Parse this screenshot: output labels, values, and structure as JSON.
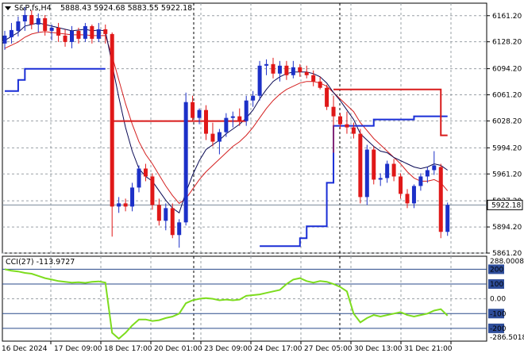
{
  "header": {
    "arrow_icon": "triangle-down-icon",
    "symbol": "S&P,fs,H4",
    "ohlc": "5888.43 5924.68 5883.55 5922.18"
  },
  "price_axis": {
    "ticks": [
      "6161.20",
      "6128.20",
      "6094.20",
      "6061.20",
      "6028.20",
      "5994.20",
      "5961.20",
      "5927.20",
      "5894.20",
      "5861.20"
    ],
    "current_price_label": "5922.18"
  },
  "indicator": {
    "title": "CCI(27) -113.9727",
    "ticks": [
      "288.0008",
      "0.00",
      "-286.5018"
    ],
    "level_labels": [
      "200",
      "100",
      "-100",
      "-200"
    ]
  },
  "time_axis": {
    "labels": [
      "16 Dec 2024",
      "17 Dec 09:00",
      "18 Dec 17:00",
      "20 Dec 01:00",
      "23 Dec 09:00",
      "24 Dec 17:00",
      "27 Dec 05:00",
      "30 Dec 13:00",
      "31 Dec 21:00"
    ]
  },
  "colors": {
    "bull": "#1c30c8",
    "bear": "#e01818",
    "fast_ma": "#0a0a55",
    "slow_ma": "#d42020",
    "stop_bull": "#1a2ed6",
    "stop_bear": "#d81a1a",
    "cci": "#7ddc1e",
    "grid": "#9aa0a6",
    "level_line": "#2a4a8a"
  },
  "chart_data": {
    "type": "candlestick",
    "y_range": [
      5861.2,
      6177
    ],
    "series": [
      {
        "name": "price",
        "ohlc": [
          [
            6126,
            6142,
            6118,
            6136
          ],
          [
            6134,
            6152,
            6126,
            6143
          ],
          [
            6142,
            6160,
            6135,
            6154
          ],
          [
            6154,
            6172,
            6142,
            6162
          ],
          [
            6162,
            6168,
            6144,
            6150
          ],
          [
            6150,
            6164,
            6140,
            6158
          ],
          [
            6158,
            6162,
            6136,
            6142
          ],
          [
            6142,
            6150,
            6130,
            6146
          ],
          [
            6146,
            6152,
            6128,
            6136
          ],
          [
            6136,
            6144,
            6122,
            6128
          ],
          [
            6128,
            6148,
            6120,
            6142
          ],
          [
            6142,
            6146,
            6126,
            6132
          ],
          [
            6132,
            6152,
            6128,
            6148
          ],
          [
            6148,
            6150,
            6126,
            6132
          ],
          [
            6132,
            6152,
            6128,
            6144
          ],
          [
            6144,
            6150,
            6126,
            6138
          ],
          [
            6138,
            6140,
            5882,
            5920
          ],
          [
            5920,
            5932,
            5912,
            5924
          ],
          [
            5924,
            5930,
            5914,
            5920
          ],
          [
            5920,
            5950,
            5914,
            5944
          ],
          [
            5944,
            5972,
            5938,
            5968
          ],
          [
            5968,
            5974,
            5952,
            5958
          ],
          [
            5958,
            5962,
            5916,
            5922
          ],
          [
            5922,
            5930,
            5896,
            5902
          ],
          [
            5902,
            5924,
            5890,
            5918
          ],
          [
            5918,
            5924,
            5880,
            5884
          ],
          [
            5884,
            5904,
            5868,
            5900
          ],
          [
            5900,
            6064,
            5896,
            6052
          ],
          [
            6052,
            6060,
            6028,
            6032
          ],
          [
            6032,
            6044,
            6024,
            6042
          ],
          [
            6042,
            6048,
            6004,
            6012
          ],
          [
            6012,
            6026,
            5996,
            6002
          ],
          [
            6002,
            6018,
            5986,
            6014
          ],
          [
            6014,
            6038,
            6008,
            6032
          ],
          [
            6032,
            6040,
            6020,
            6034
          ],
          [
            6034,
            6044,
            6022,
            6028
          ],
          [
            6028,
            6060,
            6022,
            6054
          ],
          [
            6054,
            6066,
            6046,
            6060
          ],
          [
            6060,
            6104,
            6054,
            6098
          ],
          [
            6098,
            6106,
            6086,
            6100
          ],
          [
            6100,
            6108,
            6082,
            6088
          ],
          [
            6088,
            6104,
            6078,
            6098
          ],
          [
            6098,
            6104,
            6080,
            6086
          ],
          [
            6086,
            6104,
            6082,
            6096
          ],
          [
            6096,
            6100,
            6084,
            6090
          ],
          [
            6090,
            6098,
            6082,
            6086
          ],
          [
            6086,
            6092,
            6072,
            6078
          ],
          [
            6078,
            6084,
            6068,
            6070
          ],
          [
            6070,
            6074,
            6042,
            6046
          ],
          [
            6046,
            6060,
            5988,
            6034
          ],
          [
            6034,
            6038,
            6018,
            6024
          ],
          [
            6024,
            6040,
            6012,
            6020
          ],
          [
            6020,
            6026,
            6006,
            6012
          ],
          [
            6012,
            6018,
            5924,
            5932
          ],
          [
            5932,
            5998,
            5922,
            5992
          ],
          [
            5992,
            5996,
            5948,
            5954
          ],
          [
            5954,
            5962,
            5946,
            5956
          ],
          [
            5956,
            5978,
            5950,
            5974
          ],
          [
            5974,
            5980,
            5952,
            5958
          ],
          [
            5958,
            5962,
            5930,
            5936
          ],
          [
            5936,
            5942,
            5918,
            5924
          ],
          [
            5924,
            5948,
            5918,
            5946
          ],
          [
            5946,
            5962,
            5940,
            5958
          ],
          [
            5958,
            5970,
            5950,
            5966
          ],
          [
            5966,
            5990,
            5960,
            5972
          ],
          [
            5970,
            5974,
            5880,
            5888
          ],
          [
            5888,
            5925,
            5883,
            5922
          ]
        ]
      },
      {
        "name": "fast_ma",
        "values": [
          6130,
          6135,
          6140,
          6148,
          6150,
          6152,
          6150,
          6148,
          6146,
          6144,
          6142,
          6143,
          6144,
          6142,
          6143,
          6142,
          6100,
          6058,
          6020,
          5990,
          5968,
          5958,
          5952,
          5940,
          5928,
          5918,
          5912,
          5938,
          5960,
          5978,
          5992,
          5998,
          6004,
          6012,
          6018,
          6024,
          6032,
          6042,
          6056,
          6068,
          6078,
          6084,
          6088,
          6090,
          6090,
          6090,
          6088,
          6084,
          6076,
          6064,
          6054,
          6042,
          6030,
          6012,
          6004,
          5996,
          5990,
          5988,
          5982,
          5978,
          5974,
          5970,
          5968,
          5970,
          5974,
          5972,
          5966
        ]
      },
      {
        "name": "slow_ma",
        "values": [
          6120,
          6124,
          6128,
          6134,
          6138,
          6140,
          6141,
          6140,
          6139,
          6138,
          6137,
          6137,
          6137,
          6136,
          6136,
          6136,
          6110,
          6080,
          6050,
          6024,
          6002,
          5986,
          5974,
          5960,
          5946,
          5934,
          5924,
          5930,
          5942,
          5954,
          5964,
          5972,
          5980,
          5988,
          5996,
          6002,
          6010,
          6020,
          6032,
          6044,
          6054,
          6062,
          6068,
          6072,
          6076,
          6078,
          6078,
          6076,
          6072,
          6064,
          6056,
          6048,
          6040,
          6026,
          6016,
          6006,
          5998,
          5990,
          5982,
          5974,
          5964,
          5956,
          5952,
          5952,
          5954,
          5950,
          5940
        ]
      },
      {
        "name": "stop_bull",
        "values": [
          6066,
          6066,
          6080,
          6094,
          6094,
          6094,
          6094,
          6094,
          6094,
          6094,
          6094,
          6094,
          6094,
          6094,
          6094,
          6094,
          null,
          null,
          null,
          null,
          null,
          null,
          null,
          null,
          null,
          null,
          null,
          null,
          null,
          null,
          null,
          null,
          null,
          null,
          null,
          null,
          null,
          null,
          5870,
          5870,
          5870,
          5870,
          5870,
          5870,
          5880,
          5895,
          5895,
          5895,
          5950,
          6022,
          6022,
          6022,
          6022,
          6022,
          6022,
          6030,
          6030,
          6030,
          6030,
          6030,
          6030,
          6034,
          6034,
          6034,
          6034,
          6034,
          6034
        ]
      },
      {
        "name": "stop_bear",
        "values": [
          null,
          null,
          null,
          null,
          null,
          null,
          null,
          null,
          null,
          null,
          null,
          null,
          null,
          null,
          null,
          null,
          6028,
          6028,
          6028,
          6028,
          6028,
          6028,
          6028,
          6028,
          6028,
          6028,
          6028,
          6028,
          6028,
          6028,
          6028,
          6028,
          6028,
          6028,
          6028,
          6028,
          6028,
          null,
          null,
          null,
          null,
          null,
          null,
          null,
          null,
          null,
          null,
          null,
          null,
          6068,
          6068,
          6068,
          6068,
          6068,
          6068,
          6068,
          6068,
          6068,
          6068,
          6068,
          6068,
          6068,
          6068,
          6068,
          6068,
          6010,
          6010
        ]
      },
      {
        "name": "cci",
        "values": [
          200,
          190,
          185,
          175,
          170,
          155,
          140,
          130,
          120,
          115,
          110,
          112,
          108,
          115,
          118,
          110,
          -230,
          -270,
          -230,
          -180,
          -140,
          -140,
          -150,
          -145,
          -130,
          -120,
          -100,
          -30,
          -10,
          0,
          5,
          0,
          -10,
          -5,
          -10,
          -5,
          20,
          25,
          30,
          40,
          50,
          60,
          100,
          130,
          140,
          120,
          110,
          120,
          115,
          100,
          80,
          50,
          -100,
          -160,
          -130,
          -110,
          -120,
          -110,
          -100,
          -90,
          -110,
          -120,
          -110,
          -100,
          -80,
          -70,
          -114
        ]
      }
    ],
    "cci_range": [
      -286.5018,
      288.0008
    ]
  }
}
